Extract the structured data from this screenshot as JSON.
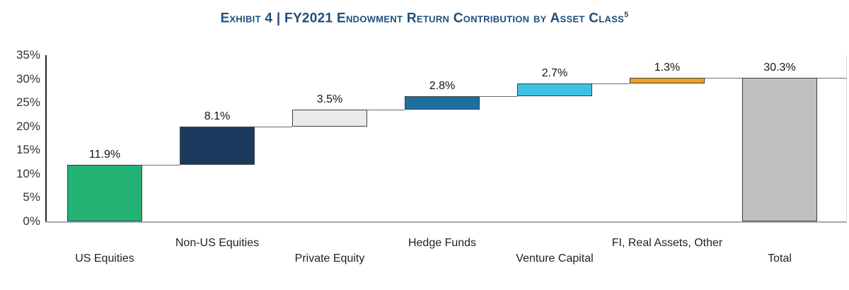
{
  "title": {
    "text": "Exhibit 4 | FY2021 Endowment Return Contribution by Asset Class",
    "superscript": "5",
    "color": "#1f4e79"
  },
  "chart_data": {
    "type": "bar",
    "subtype": "waterfall",
    "title": "Exhibit 4 | FY2021 Endowment Return Contribution by Asset Class",
    "title_footnote_marker": "5",
    "categories": [
      "US Equities",
      "Non-US Equities",
      "Private Equity",
      "Hedge Funds",
      "Venture Capital",
      "FI, Real Assets, Other",
      "Total"
    ],
    "values": [
      11.9,
      8.1,
      3.5,
      2.8,
      2.7,
      1.3,
      30.3
    ],
    "value_labels": [
      "11.9%",
      "8.1%",
      "3.5%",
      "2.8%",
      "2.7%",
      "1.3%",
      "30.3%"
    ],
    "starts": [
      0,
      11.9,
      20.0,
      23.5,
      26.3,
      29.0,
      0
    ],
    "ends": [
      11.9,
      20.0,
      23.5,
      26.3,
      29.0,
      30.3,
      30.3
    ],
    "bar_colors": [
      "#24b174",
      "#1c3a5e",
      "#e8eaeb",
      "#1d6f9e",
      "#3ec1e2",
      "#eba229",
      "#bfbfbf"
    ],
    "bar_border_color": "#3f3f3f",
    "connector_color": "#6e6e6e",
    "ylim": [
      0,
      35
    ],
    "ytick_step": 5,
    "yticks": [
      "0%",
      "5%",
      "10%",
      "15%",
      "20%",
      "25%",
      "30%",
      "35%"
    ],
    "ylabel": "",
    "xlabel": "",
    "grid": false,
    "legend": "none"
  }
}
